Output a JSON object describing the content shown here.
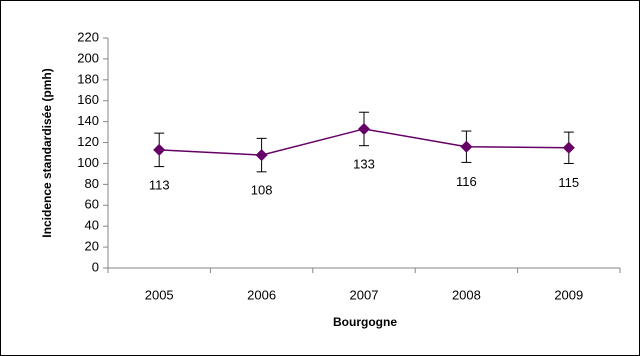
{
  "chart_data": {
    "type": "line",
    "x_label": "Bourgogne",
    "y_label": "Incidence standardisée (pmh)",
    "categories": [
      "2005",
      "2006",
      "2007",
      "2008",
      "2009"
    ],
    "series": [
      {
        "name": "Bourgogne",
        "color": "#660066",
        "values": [
          113,
          108,
          133,
          116,
          115
        ],
        "errors": [
          16,
          16,
          16,
          15,
          15
        ]
      }
    ],
    "ylim": [
      0,
      220
    ],
    "yticks": [
      0,
      20,
      40,
      60,
      80,
      100,
      120,
      140,
      160,
      180,
      200,
      220
    ],
    "grid": false,
    "data_labels": true
  }
}
